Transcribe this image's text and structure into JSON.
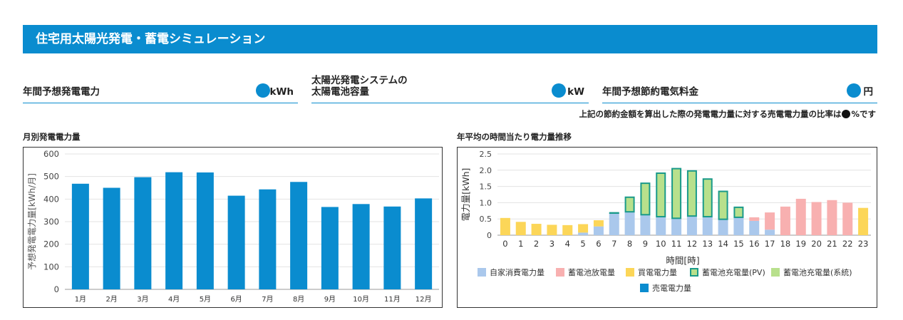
{
  "header": {
    "title": "住宅用太陽光発電・蓄電シミュレーション"
  },
  "fields": {
    "annual_generation": {
      "label": "年間予想発電電力",
      "unit": "kWh"
    },
    "system_capacity": {
      "label_line1": "太陽光発電システムの",
      "label_line2": "太陽電池容量",
      "unit": "kW"
    },
    "annual_savings": {
      "label": "年間予想節約電気料金",
      "unit": "円"
    }
  },
  "note": {
    "before": "上記の節約金額を算出した際の発電電力量に対する売電電力量の比率は",
    "after": "%です"
  },
  "chart_titles": {
    "monthly": "月別発電電力量",
    "hourly": "年平均の時間当たり電力量推移"
  },
  "colors": {
    "accent": "#0a8ccf",
    "self_consumption": "#aac8ec",
    "battery_discharge": "#f8b0b0",
    "grid_purchase": "#fcd658",
    "battery_charge_pv_fill": "#b8e08c",
    "battery_charge_pv_stroke": "#1a9a8a",
    "battery_charge_grid": "#b8e08c",
    "sell": "#0a8ccf"
  },
  "chart_data": [
    {
      "type": "bar",
      "title": "",
      "xlabel": "",
      "ylabel": "予想発電電力量[kWh/月]",
      "ylim": [
        0,
        600
      ],
      "yticks": [
        0,
        100,
        200,
        300,
        400,
        500,
        600
      ],
      "grid": true,
      "categories": [
        "1月",
        "2月",
        "3月",
        "4月",
        "5月",
        "6月",
        "7月",
        "8月",
        "9月",
        "10月",
        "11月",
        "12月"
      ],
      "values": [
        468,
        450,
        497,
        519,
        518,
        415,
        443,
        476,
        365,
        378,
        367,
        403
      ]
    },
    {
      "type": "bar",
      "stacked": true,
      "title": "",
      "xlabel": "時間[時]",
      "ylabel": "電力量[kWh]",
      "ylim": [
        0,
        2.5
      ],
      "yticks": [
        0,
        0.5,
        1.0,
        1.5,
        2.0,
        2.5
      ],
      "ytick_labels": [
        "0",
        "0.5",
        "1.0",
        "1.5",
        "2.0",
        "2.5"
      ],
      "grid": true,
      "legend_position": "bottom",
      "categories": [
        "0",
        "1",
        "2",
        "3",
        "4",
        "5",
        "6",
        "7",
        "8",
        "9",
        "10",
        "11",
        "12",
        "13",
        "14",
        "15",
        "16",
        "17",
        "18",
        "19",
        "20",
        "21",
        "22",
        "23"
      ],
      "series": [
        {
          "name": "自家消費電力量",
          "key": "self_consumption",
          "values": [
            0,
            0,
            0,
            0,
            0,
            0.08,
            0.27,
            0.68,
            0.72,
            0.63,
            0.57,
            0.52,
            0.59,
            0.57,
            0.49,
            0.55,
            0.44,
            0.17,
            0,
            0,
            0,
            0,
            0,
            0
          ]
        },
        {
          "name": "蓄電池放電量",
          "key": "battery_discharge",
          "values": [
            0,
            0,
            0,
            0,
            0,
            0,
            0,
            0,
            0,
            0,
            0,
            0,
            0,
            0,
            0,
            0,
            0.11,
            0.53,
            0.88,
            1.12,
            1.02,
            1.08,
            1.0,
            0
          ]
        },
        {
          "name": "買電電力量",
          "key": "grid_purchase",
          "values": [
            0.53,
            0.41,
            0.35,
            0.32,
            0.31,
            0.26,
            0.19,
            0,
            0,
            0,
            0,
            0,
            0,
            0,
            0,
            0,
            0,
            0,
            0,
            0,
            0,
            0,
            0,
            0.84
          ]
        },
        {
          "name": "蓄電池充電量(PV)",
          "key": "battery_charge_pv",
          "values": [
            0,
            0,
            0,
            0,
            0,
            0,
            0,
            0.03,
            0.47,
            0.99,
            1.36,
            1.55,
            1.41,
            1.18,
            0.88,
            0.33,
            0,
            0,
            0,
            0,
            0,
            0,
            0,
            0
          ]
        },
        {
          "name": "蓄電池充電量(系統)",
          "key": "battery_charge_grid",
          "values": [
            0,
            0,
            0,
            0,
            0,
            0,
            0,
            0,
            0,
            0,
            0,
            0,
            0,
            0,
            0,
            0,
            0,
            0,
            0,
            0,
            0,
            0,
            0,
            0
          ]
        },
        {
          "name": "売電電力量",
          "key": "sell",
          "values": [
            0,
            0,
            0,
            0,
            0,
            0,
            0,
            0,
            0,
            0,
            0,
            0,
            0,
            0,
            0,
            0,
            0,
            0,
            0,
            0,
            0,
            0,
            0,
            0
          ]
        }
      ]
    }
  ]
}
